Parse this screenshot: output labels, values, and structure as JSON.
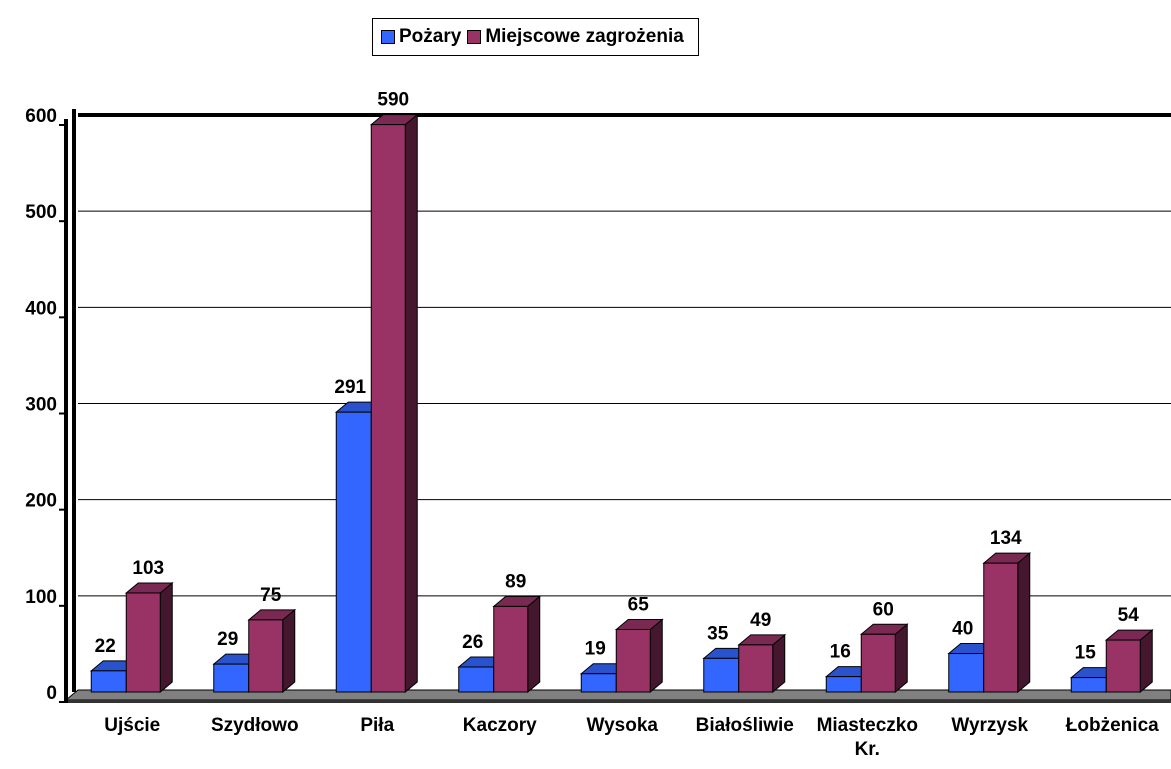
{
  "chart_data": {
    "type": "bar3d",
    "categories": [
      "Ujście",
      "Szydłowo",
      "Piła",
      "Kaczory",
      "Wysoka",
      "Białośliwie",
      "Miasteczko Kr.",
      "Wyrzysk",
      "Łobżenica"
    ],
    "series": [
      {
        "name": "Pożary",
        "color": "#3366ff",
        "values": [
          22,
          29,
          291,
          26,
          19,
          35,
          16,
          40,
          15
        ]
      },
      {
        "name": "Miejscowe zagrożenia",
        "color": "#993366",
        "values": [
          103,
          75,
          590,
          89,
          65,
          49,
          60,
          134,
          54
        ]
      }
    ],
    "ylim": [
      0,
      600
    ],
    "yticks": [
      0,
      100,
      200,
      300,
      400,
      500,
      600
    ],
    "grid": true,
    "legend": "top"
  }
}
